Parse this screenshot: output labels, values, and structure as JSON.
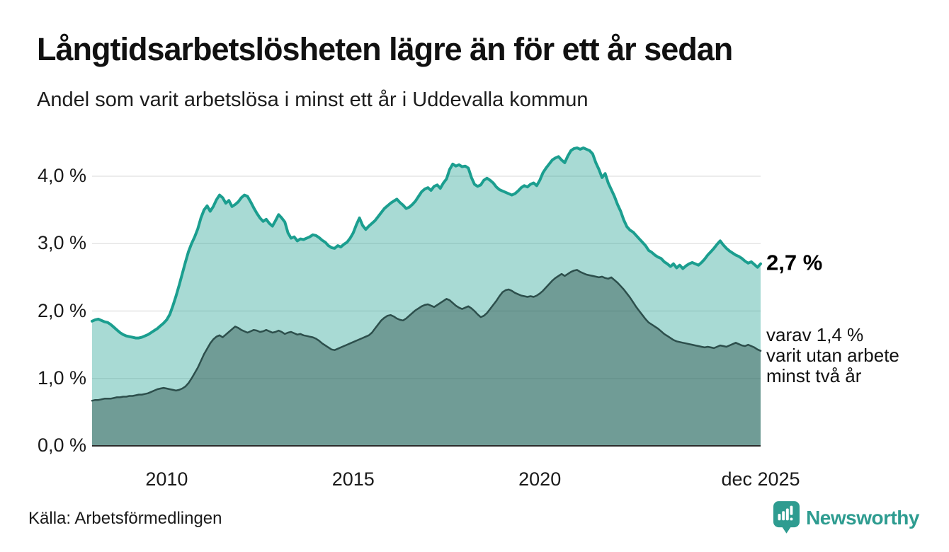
{
  "header": {
    "title": "Långtidsarbetslösheten lägre än för ett år sedan",
    "subtitle": "Andel som varit arbetslösa i minst ett år i Uddevalla kommun"
  },
  "chart_data": {
    "type": "area",
    "title": "Långtidsarbetslösheten lägre än för ett år sedan",
    "subtitle": "Andel som varit arbetslösa i minst ett år i Uddevalla kommun",
    "x_unit": "year-month",
    "x_start": 2008.0,
    "x_step": 0.0833333,
    "xlim": [
      2008.0,
      2025.917
    ],
    "ylim": [
      0,
      4.64
    ],
    "grid": "horizontal",
    "legend_position": "none",
    "colors": {
      "line_1yr": "#1b9e8f",
      "fill_1yr": "rgba(27,158,143,0.38)",
      "line_2yr": "#2d4f4c",
      "fill_2yr": "rgba(45,79,76,0.45)",
      "gridline": "#e5e5e5",
      "axis": "#2b2b2b"
    },
    "series": [
      {
        "name": "arbetslösa minst ett år",
        "values": [
          1.85,
          1.87,
          1.88,
          1.86,
          1.84,
          1.83,
          1.8,
          1.76,
          1.72,
          1.68,
          1.65,
          1.63,
          1.62,
          1.61,
          1.6,
          1.6,
          1.61,
          1.63,
          1.65,
          1.68,
          1.71,
          1.74,
          1.78,
          1.82,
          1.87,
          1.95,
          2.08,
          2.22,
          2.38,
          2.55,
          2.72,
          2.88,
          3.0,
          3.1,
          3.22,
          3.38,
          3.5,
          3.56,
          3.48,
          3.55,
          3.65,
          3.72,
          3.68,
          3.6,
          3.64,
          3.55,
          3.58,
          3.62,
          3.68,
          3.72,
          3.7,
          3.62,
          3.53,
          3.45,
          3.38,
          3.33,
          3.36,
          3.3,
          3.26,
          3.34,
          3.43,
          3.38,
          3.32,
          3.16,
          3.08,
          3.1,
          3.04,
          3.07,
          3.06,
          3.08,
          3.1,
          3.13,
          3.12,
          3.09,
          3.05,
          3.02,
          2.97,
          2.94,
          2.93,
          2.97,
          2.95,
          2.99,
          3.02,
          3.08,
          3.16,
          3.28,
          3.38,
          3.27,
          3.21,
          3.26,
          3.3,
          3.34,
          3.4,
          3.46,
          3.52,
          3.56,
          3.6,
          3.63,
          3.66,
          3.61,
          3.57,
          3.52,
          3.54,
          3.58,
          3.63,
          3.7,
          3.77,
          3.81,
          3.83,
          3.79,
          3.85,
          3.87,
          3.82,
          3.9,
          3.96,
          4.1,
          4.18,
          4.15,
          4.17,
          4.14,
          4.15,
          4.12,
          3.98,
          3.88,
          3.85,
          3.87,
          3.94,
          3.97,
          3.94,
          3.9,
          3.84,
          3.8,
          3.78,
          3.76,
          3.74,
          3.72,
          3.74,
          3.78,
          3.83,
          3.86,
          3.84,
          3.88,
          3.9,
          3.86,
          3.94,
          4.05,
          4.12,
          4.18,
          4.24,
          4.27,
          4.29,
          4.24,
          4.2,
          4.3,
          4.38,
          4.41,
          4.42,
          4.4,
          4.42,
          4.4,
          4.38,
          4.33,
          4.2,
          4.1,
          3.98,
          4.04,
          3.9,
          3.8,
          3.7,
          3.58,
          3.48,
          3.35,
          3.25,
          3.2,
          3.17,
          3.12,
          3.07,
          3.02,
          2.97,
          2.9,
          2.87,
          2.83,
          2.8,
          2.78,
          2.73,
          2.7,
          2.66,
          2.7,
          2.64,
          2.68,
          2.63,
          2.67,
          2.7,
          2.72,
          2.7,
          2.68,
          2.72,
          2.77,
          2.83,
          2.88,
          2.93,
          2.99,
          3.04,
          2.98,
          2.93,
          2.89,
          2.86,
          2.83,
          2.81,
          2.78,
          2.74,
          2.71,
          2.73,
          2.69,
          2.65,
          2.7
        ]
      },
      {
        "name": "varav utan arbete minst två år",
        "values": [
          0.67,
          0.68,
          0.68,
          0.69,
          0.7,
          0.7,
          0.7,
          0.71,
          0.72,
          0.72,
          0.73,
          0.73,
          0.74,
          0.74,
          0.75,
          0.76,
          0.76,
          0.77,
          0.78,
          0.8,
          0.82,
          0.84,
          0.85,
          0.86,
          0.85,
          0.84,
          0.83,
          0.82,
          0.83,
          0.85,
          0.88,
          0.93,
          1.0,
          1.08,
          1.16,
          1.26,
          1.36,
          1.44,
          1.52,
          1.58,
          1.62,
          1.64,
          1.61,
          1.65,
          1.69,
          1.73,
          1.77,
          1.75,
          1.72,
          1.7,
          1.68,
          1.7,
          1.72,
          1.71,
          1.69,
          1.7,
          1.72,
          1.7,
          1.68,
          1.69,
          1.71,
          1.69,
          1.66,
          1.68,
          1.69,
          1.67,
          1.65,
          1.66,
          1.64,
          1.63,
          1.62,
          1.61,
          1.59,
          1.56,
          1.52,
          1.49,
          1.46,
          1.43,
          1.42,
          1.44,
          1.46,
          1.48,
          1.5,
          1.52,
          1.54,
          1.56,
          1.58,
          1.6,
          1.62,
          1.64,
          1.68,
          1.74,
          1.8,
          1.86,
          1.9,
          1.93,
          1.94,
          1.92,
          1.89,
          1.87,
          1.86,
          1.89,
          1.93,
          1.97,
          2.01,
          2.04,
          2.07,
          2.09,
          2.1,
          2.08,
          2.06,
          2.09,
          2.12,
          2.15,
          2.18,
          2.16,
          2.12,
          2.08,
          2.05,
          2.03,
          2.05,
          2.07,
          2.04,
          2.0,
          1.95,
          1.91,
          1.93,
          1.97,
          2.03,
          2.09,
          2.15,
          2.22,
          2.28,
          2.31,
          2.32,
          2.3,
          2.27,
          2.25,
          2.23,
          2.22,
          2.21,
          2.22,
          2.21,
          2.23,
          2.26,
          2.3,
          2.35,
          2.4,
          2.45,
          2.49,
          2.52,
          2.55,
          2.52,
          2.55,
          2.58,
          2.6,
          2.61,
          2.58,
          2.56,
          2.54,
          2.53,
          2.52,
          2.51,
          2.5,
          2.51,
          2.49,
          2.48,
          2.5,
          2.46,
          2.42,
          2.37,
          2.32,
          2.26,
          2.2,
          2.13,
          2.06,
          2.0,
          1.94,
          1.88,
          1.83,
          1.8,
          1.77,
          1.74,
          1.7,
          1.66,
          1.63,
          1.6,
          1.57,
          1.55,
          1.54,
          1.53,
          1.52,
          1.51,
          1.5,
          1.49,
          1.48,
          1.47,
          1.46,
          1.47,
          1.46,
          1.45,
          1.47,
          1.49,
          1.48,
          1.47,
          1.49,
          1.51,
          1.53,
          1.51,
          1.49,
          1.48,
          1.5,
          1.48,
          1.46,
          1.43,
          1.41
        ]
      }
    ],
    "y_ticks": [
      {
        "v": 0,
        "label": "0,0 %"
      },
      {
        "v": 1,
        "label": "1,0 %"
      },
      {
        "v": 2,
        "label": "2,0 %"
      },
      {
        "v": 3,
        "label": "3,0 %"
      },
      {
        "v": 4,
        "label": "4,0 %"
      }
    ],
    "x_ticks": [
      {
        "v": 2010.0,
        "label": "2010"
      },
      {
        "v": 2015.0,
        "label": "2015"
      },
      {
        "v": 2020.0,
        "label": "2020"
      },
      {
        "v": 2025.917,
        "label": "dec 2025"
      }
    ],
    "annotations": {
      "end_value": {
        "text": "2,7 %",
        "anchor_v": 2.7
      },
      "secondary": {
        "lines": [
          "varav 1,4 %",
          "varit utan arbete",
          "minst två år"
        ],
        "anchor_v": 1.4
      }
    }
  },
  "footer": {
    "source": "Källa: Arbetsförmedlingen",
    "brand": "Newsworthy"
  }
}
